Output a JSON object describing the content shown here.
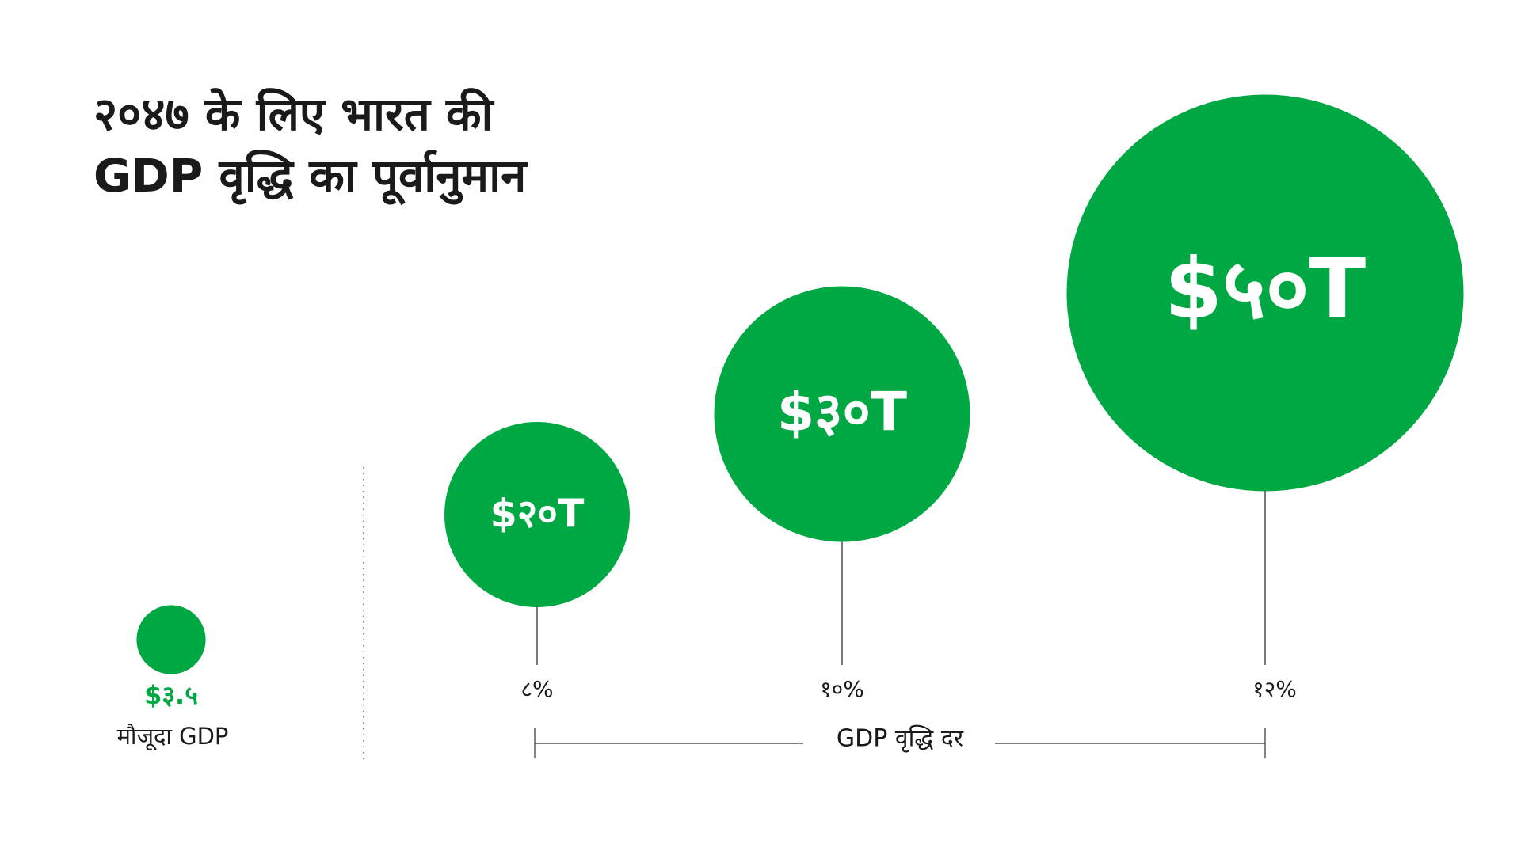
{
  "chart_data": {
    "type": "bubble",
    "title_lines": [
      "२०४७ के लिए भारत की",
      "GDP वृद्धि का पूर्वानुमान"
    ],
    "current": {
      "label": "मौजूदा GDP",
      "value": 3.5,
      "value_label": "$३.५"
    },
    "categories": [
      "८%",
      "१०%",
      "१२%"
    ],
    "values": [
      20,
      30,
      50
    ],
    "value_labels": [
      "$२०T",
      "$३०T",
      "$५०T"
    ],
    "xlabel": "GDP वृद्धि दर",
    "color": "#00a843"
  }
}
